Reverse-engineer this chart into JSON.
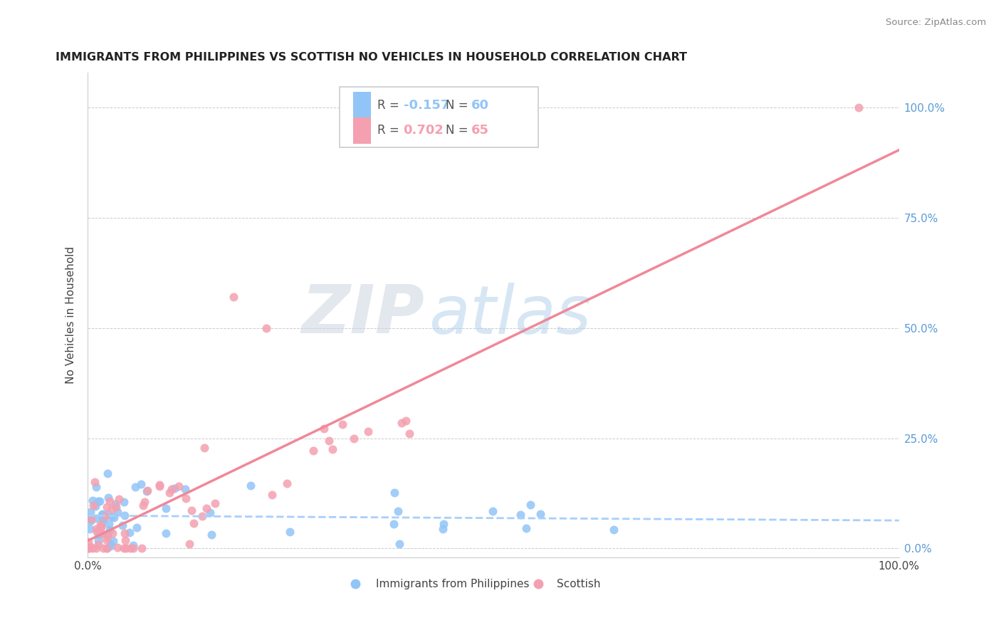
{
  "title": "IMMIGRANTS FROM PHILIPPINES VS SCOTTISH NO VEHICLES IN HOUSEHOLD CORRELATION CHART",
  "source": "Source: ZipAtlas.com",
  "ylabel": "No Vehicles in Household",
  "legend_label1": "Immigrants from Philippines",
  "legend_label2": "Scottish",
  "r1": "-0.157",
  "n1": "60",
  "r2": "0.702",
  "n2": "65",
  "color_blue": "#92C5F7",
  "color_pink": "#F4A0B0",
  "line_blue": "#A8CFFA",
  "line_pink": "#F08898",
  "watermark_zip": "#d0d8e8",
  "watermark_atlas": "#a8c4e0",
  "ytick_color": "#5B9BD5"
}
